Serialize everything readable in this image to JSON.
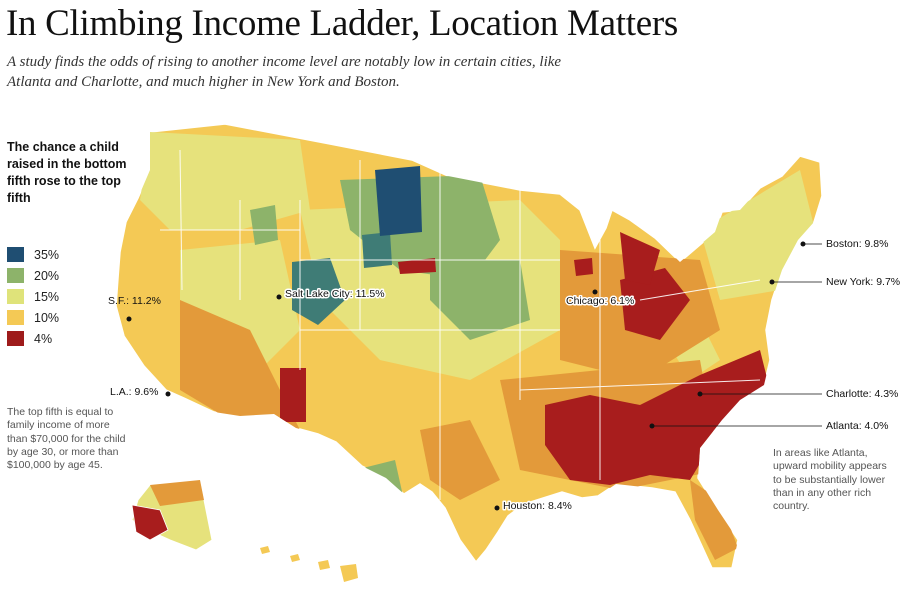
{
  "header": {
    "title": "In Climbing Income Ladder, Location Matters",
    "subtitle": "A study finds the odds of rising to another income level are notably low in certain cities, like Atlanta and Charlotte, and much higher in New York and Boston."
  },
  "legend": {
    "title": "The chance a child raised in the bottom fifth rose to the top fifth",
    "items": [
      {
        "label": "35%",
        "color": "#1f4e72"
      },
      {
        "label": "20%",
        "color": "#8db36a"
      },
      {
        "label": "15%",
        "color": "#dfe37a"
      },
      {
        "label": "10%",
        "color": "#f4c955"
      },
      {
        "label": "4%",
        "color": "#9e1b1b"
      }
    ]
  },
  "notes": {
    "top_fifth": "The top fifth is equal to family income of more than $70,000 for the child by age 30, or more than $100,000 by age 45.",
    "atlanta": "In areas like Atlanta, upward mobility appears to be substantially lower than in any other rich country."
  },
  "cities": [
    {
      "name": "Boston",
      "label": "Boston: 9.8%",
      "value": 9.8
    },
    {
      "name": "New York",
      "label": "New York: 9.7%",
      "value": 9.7
    },
    {
      "name": "Chicago",
      "label": "Chicago: 6.1%",
      "value": 6.1
    },
    {
      "name": "Charlotte",
      "label": "Charlotte: 4.3%",
      "value": 4.3
    },
    {
      "name": "Atlanta",
      "label": "Atlanta: 4.0%",
      "value": 4.0
    },
    {
      "name": "Houston",
      "label": "Houston: 8.4%",
      "value": 8.4
    },
    {
      "name": "Salt Lake City",
      "label": "Salt Lake City: 11.5%",
      "value": 11.5
    },
    {
      "name": "S.F.",
      "label": "S.F.: 11.2%",
      "value": 11.2
    },
    {
      "name": "L.A.",
      "label": "L.A.: 9.6%",
      "value": 9.6
    }
  ],
  "colors": {
    "base": "#f4c955",
    "light": "#e6e27c",
    "orange": "#e39a3a",
    "red": "#a81d1d",
    "green": "#8db36a",
    "teal": "#3f7c76",
    "navy": "#1f4e72",
    "border": "#ffffff"
  }
}
